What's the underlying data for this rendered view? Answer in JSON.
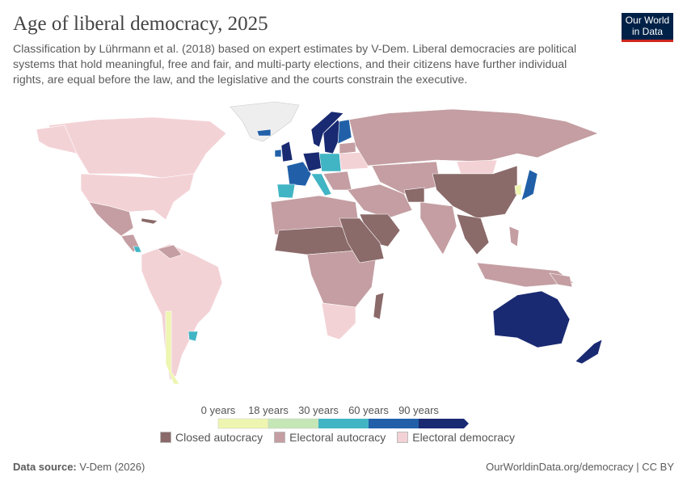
{
  "header": {
    "title": "Age of liberal democracy, 2025",
    "subtitle": "Classification by Lührmann et al. (2018) based on expert estimates by V-Dem. Liberal democracies are political systems that hold meaningful, free and fair, and multi-party elections, and their citizens have further individual rights, are equal before the law, and the legislative and the courts constrain the executive.",
    "logo": "Our World in Data"
  },
  "colors": {
    "closed_autocracy": "#8b6a6a",
    "electoral_autocracy": "#c49ea2",
    "electoral_democracy": "#f3d2d6",
    "bins": [
      "#eef5b0",
      "#c5e7b5",
      "#41b5c4",
      "#2160a8",
      "#192a72"
    ],
    "no_data": "#eeeeee"
  },
  "legend": {
    "ticks": [
      "0 years",
      "18 years",
      "30 years",
      "60 years",
      "90 years"
    ],
    "categories": [
      "Closed autocracy",
      "Electoral autocracy",
      "Electoral democracy"
    ]
  },
  "footer": {
    "source_label": "Data source:",
    "source": "V-Dem (2026)",
    "link": "OurWorldinData.org/democracy | CC BY"
  }
}
